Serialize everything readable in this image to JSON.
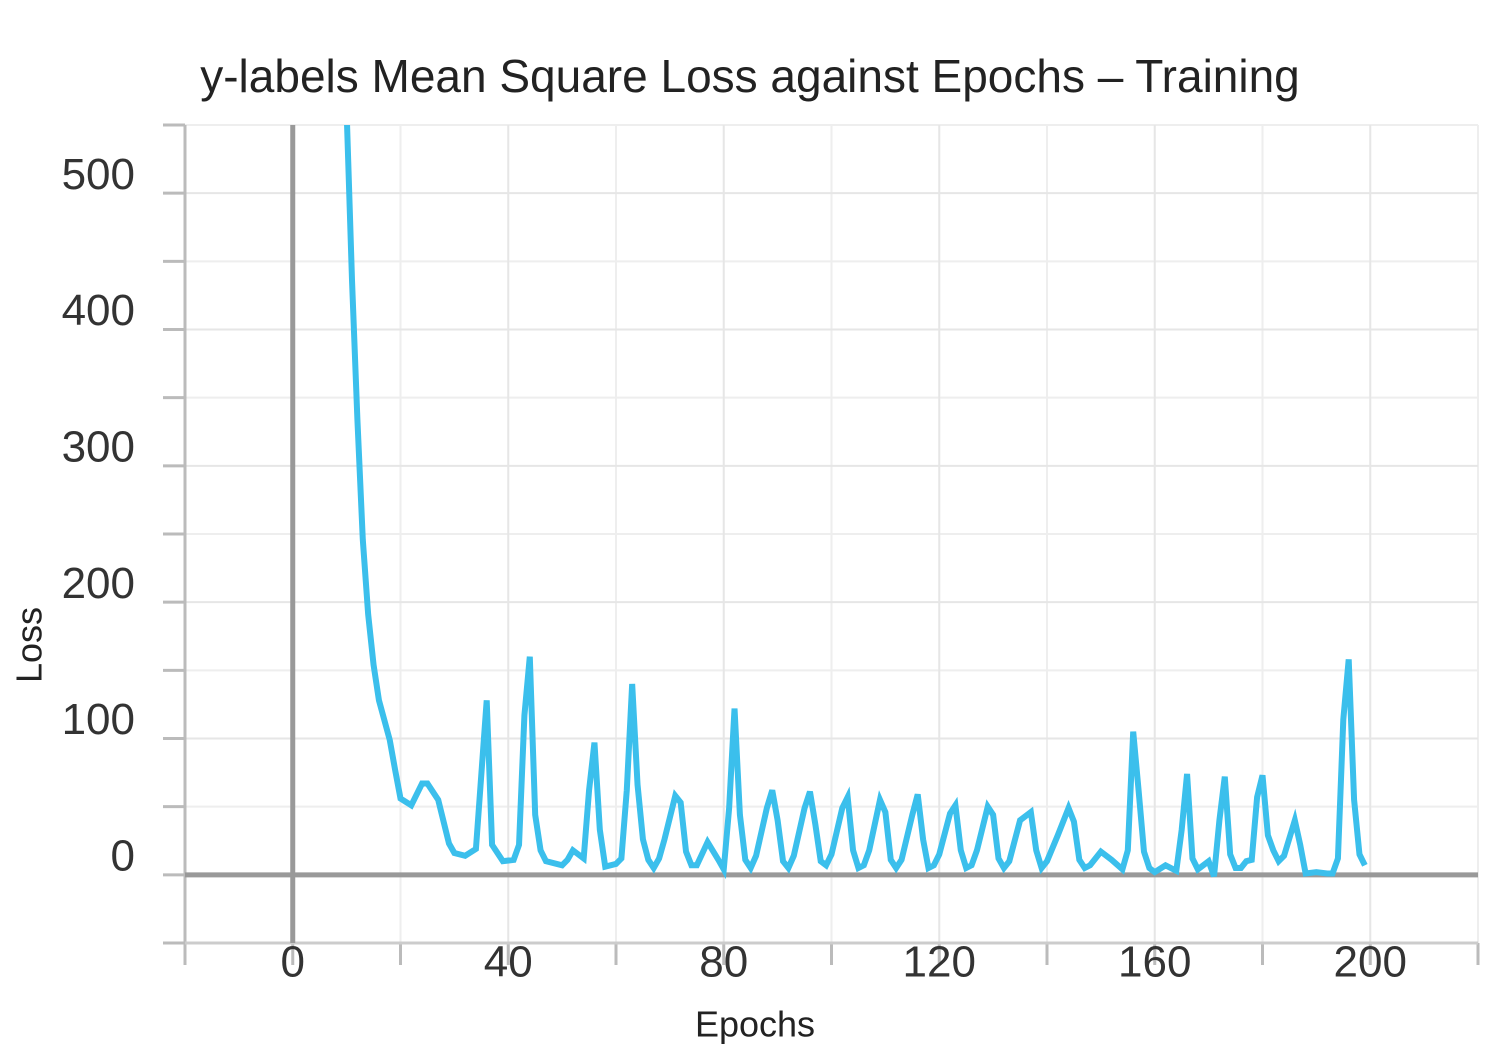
{
  "chart_data": {
    "type": "line",
    "title": "y-labels Mean Square Loss against Epochs – Training",
    "x_label": "Epochs",
    "y_label": "Loss",
    "xlim": [
      -20,
      220
    ],
    "ylim": [
      -50,
      550
    ],
    "xticks": [
      0,
      40,
      80,
      120,
      160,
      200
    ],
    "yticks": [
      0,
      100,
      200,
      300,
      400,
      500
    ],
    "xticks_minor": [
      -20,
      20,
      60,
      100,
      140,
      180,
      220
    ],
    "yticks_minor": [
      -50,
      50,
      150,
      250,
      350,
      450,
      550
    ],
    "grid": true,
    "series": [
      {
        "color": "#3bbfec",
        "x": [
          10,
          11,
          12,
          13,
          14,
          15,
          16,
          18,
          19,
          20,
          22,
          24,
          25,
          27,
          29,
          30,
          32,
          34,
          36,
          37,
          39,
          41,
          42,
          43,
          44,
          45,
          46,
          47,
          50,
          51,
          52,
          54,
          55,
          56,
          57,
          58,
          60,
          61,
          62,
          63,
          64,
          65,
          66,
          67,
          68,
          69,
          71,
          72,
          73,
          74,
          75,
          77,
          79,
          80,
          81,
          82,
          83,
          84,
          85,
          86,
          88,
          89,
          90,
          91,
          92,
          93,
          95,
          96,
          97,
          98,
          99,
          100,
          102,
          103,
          104,
          105,
          106,
          107,
          109,
          110,
          111,
          112,
          113,
          115,
          116,
          117,
          118,
          119,
          120,
          122,
          123,
          124,
          125,
          126,
          127,
          129,
          130,
          131,
          132,
          133,
          135,
          137,
          138,
          139,
          140,
          142,
          144,
          145,
          146,
          147,
          148,
          150,
          152,
          154,
          155,
          156,
          157,
          158,
          159,
          160,
          162,
          164,
          165,
          166,
          167,
          168,
          170,
          171,
          172,
          173,
          174,
          175,
          176,
          177,
          178,
          179,
          180,
          181,
          182,
          183,
          184,
          186,
          187,
          188,
          190,
          192,
          193,
          194,
          195,
          196,
          197,
          198,
          199
        ],
        "values": [
          560,
          436,
          334,
          246,
          191,
          154,
          128,
          99,
          77,
          56,
          51,
          67,
          67,
          55,
          23,
          16,
          14,
          19,
          128,
          22,
          10,
          11,
          22,
          117,
          160,
          44,
          18,
          10,
          7,
          11,
          18,
          12,
          62,
          97,
          33,
          6,
          8,
          12,
          62,
          140,
          66,
          26,
          11,
          5,
          12,
          26,
          58,
          53,
          17,
          7,
          7,
          24,
          11,
          4,
          49,
          122,
          44,
          11,
          5,
          14,
          49,
          62,
          40,
          10,
          5,
          14,
          49,
          61,
          37,
          10,
          7,
          15,
          49,
          57,
          18,
          5,
          7,
          18,
          55,
          46,
          11,
          5,
          11,
          44,
          59,
          26,
          5,
          7,
          15,
          45,
          51,
          18,
          5,
          7,
          18,
          50,
          44,
          12,
          5,
          10,
          40,
          46,
          18,
          5,
          10,
          29,
          49,
          39,
          11,
          5,
          7,
          17,
          11,
          4,
          18,
          105,
          62,
          17,
          5,
          2,
          7,
          3,
          33,
          74,
          12,
          4,
          10,
          -1,
          40,
          72,
          15,
          5,
          5,
          10,
          11,
          57,
          73,
          29,
          18,
          10,
          14,
          40,
          22,
          1,
          2,
          1,
          1,
          12,
          114,
          158,
          55,
          15,
          7
        ]
      }
    ]
  }
}
